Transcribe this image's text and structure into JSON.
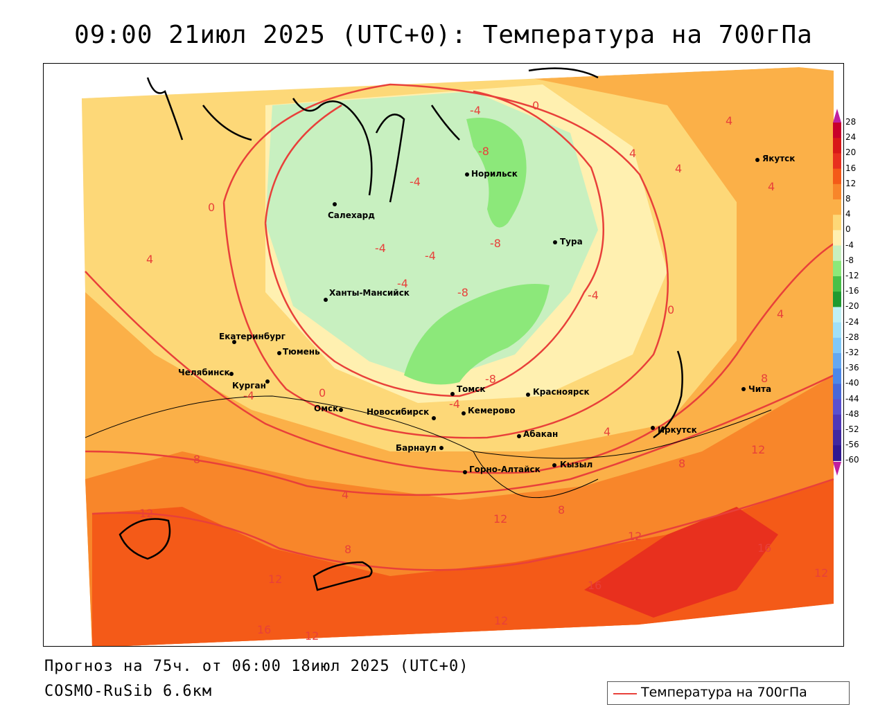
{
  "title": "09:00 21июл 2025 (UTC+0): Температура на 700гПа",
  "footer": {
    "forecast": "Прогноз на 75ч. от 06:00 18июл 2025 (UTC+0)",
    "model": "COSMO-RuSib 6.6км"
  },
  "legend": {
    "label": "Температура на 700гПа",
    "line_color": "#e8403a"
  },
  "colorbar": {
    "ticks": [
      "28",
      "24",
      "20",
      "16",
      "12",
      "8",
      "4",
      "0",
      "-4",
      "-8",
      "-12",
      "-16",
      "-20",
      "-24",
      "-28",
      "-32",
      "-36",
      "-40",
      "-44",
      "-48",
      "-52",
      "-56",
      "-60"
    ],
    "colors": [
      "#c8002a",
      "#d81818",
      "#e8301e",
      "#f45a18",
      "#f8862a",
      "#fbb048",
      "#fdd878",
      "#fff0b0",
      "#c8f0c0",
      "#8ce87a",
      "#48c048",
      "#1e9a30",
      "#bff0f4",
      "#a0e0f8",
      "#80c8f8",
      "#64a8f0",
      "#4c88e8",
      "#4868d8",
      "#5a50d0",
      "#5038b8",
      "#4028a0",
      "#301890"
    ],
    "arrow_color": "#c020a0"
  },
  "cities": [
    {
      "name": "Салехард"
    },
    {
      "name": "Норильск"
    },
    {
      "name": "Тура"
    },
    {
      "name": "Якутск"
    },
    {
      "name": "Ханты-Мансийск"
    },
    {
      "name": "Екатеринбург"
    },
    {
      "name": "Тюмень"
    },
    {
      "name": "Челябинск"
    },
    {
      "name": "Курган"
    },
    {
      "name": "Омск"
    },
    {
      "name": "Новосибирск"
    },
    {
      "name": "Томск"
    },
    {
      "name": "Кемерово"
    },
    {
      "name": "Красноярск"
    },
    {
      "name": "Барнаул"
    },
    {
      "name": "Абакан"
    },
    {
      "name": "Иркутск"
    },
    {
      "name": "Чита"
    },
    {
      "name": "Горно-Алтайск"
    },
    {
      "name": "Кызыл"
    }
  ],
  "contour_labels": [
    "-4",
    "0",
    "-8",
    "4",
    "-4",
    "-4",
    "-4",
    "-8",
    "-8",
    "-4",
    "4",
    "0",
    "-4",
    "4",
    "4",
    "4",
    "4",
    "8",
    "0",
    "0",
    "-4",
    "-8",
    "-4",
    "4",
    "8",
    "12",
    "8",
    "4",
    "12",
    "12",
    "8",
    "8",
    "12",
    "16",
    "12",
    "16",
    "12",
    "12",
    "16",
    "12"
  ]
}
